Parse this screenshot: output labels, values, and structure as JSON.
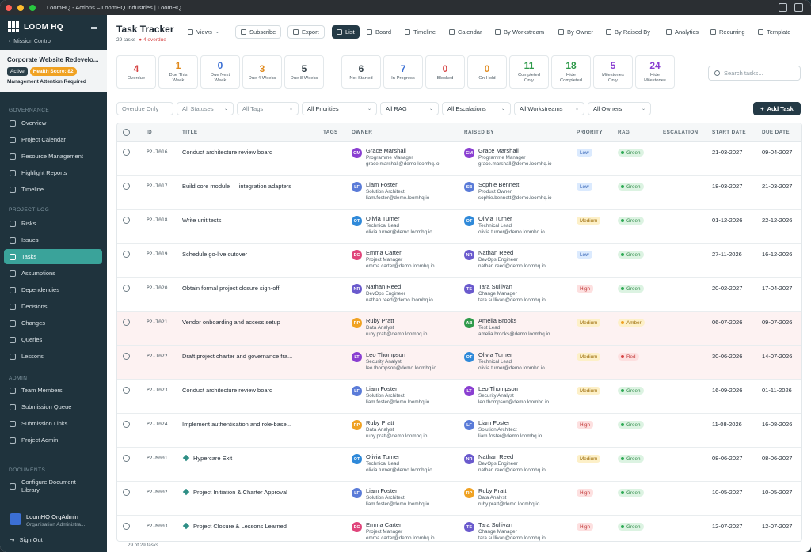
{
  "window": {
    "title": "LoomHQ - Actions – LoomHQ Industries | LoomHQ"
  },
  "sidebar": {
    "brand": "LOOM HQ",
    "back_link": "Mission Control",
    "project": {
      "name": "Corporate Website Redevelo...",
      "status": "Active",
      "health": "Health Score: 82",
      "attention": "Management Attention Required"
    },
    "sections": [
      {
        "label": "GOVERNANCE",
        "items": [
          {
            "label": "Overview",
            "icon": "grid-icon"
          },
          {
            "label": "Project Calendar",
            "icon": "calendar-icon"
          },
          {
            "label": "Resource Management",
            "icon": "users-icon"
          },
          {
            "label": "Highlight Reports",
            "icon": "report-icon"
          },
          {
            "label": "Timeline",
            "icon": "timeline-icon"
          }
        ]
      },
      {
        "label": "PROJECT LOG",
        "items": [
          {
            "label": "Risks",
            "icon": "risk-icon"
          },
          {
            "label": "Issues",
            "icon": "issue-icon"
          },
          {
            "label": "Tasks",
            "icon": "tasks-icon",
            "active": true
          },
          {
            "label": "Assumptions",
            "icon": "bulb-icon"
          },
          {
            "label": "Dependencies",
            "icon": "link-icon"
          },
          {
            "label": "Decisions",
            "icon": "decision-icon"
          },
          {
            "label": "Changes",
            "icon": "changes-icon"
          },
          {
            "label": "Queries",
            "icon": "query-icon"
          },
          {
            "label": "Lessons",
            "icon": "book-icon"
          }
        ]
      },
      {
        "label": "ADMIN",
        "items": [
          {
            "label": "Team Members",
            "icon": "team-icon"
          },
          {
            "label": "Submission Queue",
            "icon": "queue-icon"
          },
          {
            "label": "Submission Links",
            "icon": "link-icon"
          },
          {
            "label": "Project Admin",
            "icon": "gear-icon"
          }
        ]
      },
      {
        "label": "DOCUMENTS",
        "items": [
          {
            "label": "Configure Document Library",
            "icon": "gear-icon"
          }
        ]
      }
    ],
    "user": {
      "name": "LoomHQ OrgAdmin",
      "role": "Organisation Administra..."
    },
    "sign_out": "Sign Out"
  },
  "header": {
    "title": "Task Tracker",
    "count": "29 tasks",
    "overdue": "● 4 overdue",
    "views": "Views",
    "subscribe": "Subscribe",
    "export": "Export",
    "view_tabs": [
      "List",
      "Board",
      "Timeline",
      "Calendar",
      "By Workstream",
      "By Owner",
      "By Raised By",
      "Analytics",
      "Recurring",
      "Template"
    ]
  },
  "stats_group1": [
    {
      "num": "4",
      "label": "Overdue",
      "color": "#d64545"
    },
    {
      "num": "1",
      "label": "Due This Week",
      "color": "#e08a1e"
    },
    {
      "num": "0",
      "label": "Due Next Week",
      "color": "#3b6fd4"
    },
    {
      "num": "3",
      "label": "Due 4 Weeks",
      "color": "#e08a1e"
    },
    {
      "num": "5",
      "label": "Due 8 Weeks",
      "color": "#36434b"
    }
  ],
  "stats_group2": [
    {
      "num": "6",
      "label": "Not Started",
      "color": "#36434b"
    },
    {
      "num": "7",
      "label": "In Progress",
      "color": "#3b6fd4"
    },
    {
      "num": "0",
      "label": "Blocked",
      "color": "#d64545"
    },
    {
      "num": "0",
      "label": "On Hold",
      "color": "#e08a1e"
    },
    {
      "num": "11",
      "label": "Completed Only",
      "color": "#2e9a4a"
    },
    {
      "num": "18",
      "label": "Hide Completed",
      "color": "#2e9a4a"
    },
    {
      "num": "5",
      "label": "Milestones Only",
      "color": "#8a3fd1"
    },
    {
      "num": "24",
      "label": "Hide Milestones",
      "color": "#8a3fd1"
    }
  ],
  "search": {
    "placeholder": "Search tasks..."
  },
  "filters": [
    {
      "label": "Overdue Only",
      "w": 0
    },
    {
      "label": "All Statuses"
    },
    {
      "label": "All Tags"
    },
    {
      "label": "All Priorities"
    },
    {
      "label": "All RAG"
    },
    {
      "label": "All Escalations"
    },
    {
      "label": "All Workstreams"
    },
    {
      "label": "All Owners"
    }
  ],
  "add_task": "Add Task",
  "columns": [
    "ID",
    "TITLE",
    "TAGS",
    "OWNER",
    "RAISED BY",
    "PRIORITY",
    "RAG",
    "ESCALATION",
    "START DATE",
    "DUE DATE"
  ],
  "rows": [
    {
      "id": "P2-T016",
      "title": "Conduct architecture review board",
      "tags": "—",
      "owner": {
        "i": "GM",
        "name": "Grace Marshall",
        "role": "Programme Manager",
        "email": "grace.marshall@demo.loomhq.io"
      },
      "raised": {
        "i": "GM",
        "name": "Grace Marshall",
        "role": "Programme Manager",
        "email": "grace.marshall@demo.loomhq.io"
      },
      "priority": "Low",
      "rag": "Green",
      "esc": "—",
      "start": "21-03-2027",
      "due": "09-04-2027"
    },
    {
      "id": "P2-T017",
      "title": "Build core module — integration adapters",
      "tags": "—",
      "owner": {
        "i": "LF",
        "name": "Liam Foster",
        "role": "Solution Architect",
        "email": "liam.foster@demo.loomhq.io"
      },
      "raised": {
        "i": "SB",
        "name": "Sophie Bennett",
        "role": "Product Owner",
        "email": "sophie.bennett@demo.loomhq.io"
      },
      "priority": "Low",
      "rag": "Green",
      "esc": "—",
      "start": "18-03-2027",
      "due": "21-03-2027"
    },
    {
      "id": "P2-T018",
      "title": "Write unit tests",
      "tags": "—",
      "owner": {
        "i": "OT",
        "name": "Olivia Turner",
        "role": "Technical Lead",
        "email": "olivia.turner@demo.loomhq.io"
      },
      "raised": {
        "i": "OT",
        "name": "Olivia Turner",
        "role": "Technical Lead",
        "email": "olivia.turner@demo.loomhq.io"
      },
      "priority": "Medium",
      "rag": "Green",
      "esc": "—",
      "start": "01-12-2026",
      "due": "22-12-2026"
    },
    {
      "id": "P2-T019",
      "title": "Schedule go-live cutover",
      "tags": "—",
      "owner": {
        "i": "EC",
        "name": "Emma Carter",
        "role": "Project Manager",
        "email": "emma.carter@demo.loomhq.io"
      },
      "raised": {
        "i": "NR",
        "name": "Nathan Reed",
        "role": "DevOps Engineer",
        "email": "nathan.reed@demo.loomhq.io"
      },
      "priority": "Low",
      "rag": "Green",
      "esc": "—",
      "start": "27-11-2026",
      "due": "16-12-2026"
    },
    {
      "id": "P2-T020",
      "title": "Obtain formal project closure sign-off",
      "tags": "—",
      "owner": {
        "i": "NR",
        "name": "Nathan Reed",
        "role": "DevOps Engineer",
        "email": "nathan.reed@demo.loomhq.io"
      },
      "raised": {
        "i": "TS",
        "name": "Tara Sullivan",
        "role": "Change Manager",
        "email": "tara.sullivan@demo.loomhq.io"
      },
      "priority": "High",
      "rag": "Green",
      "esc": "—",
      "start": "20-02-2027",
      "due": "17-04-2027"
    },
    {
      "id": "P2-T021",
      "title": "Vendor onboarding and access setup",
      "tags": "—",
      "owner": {
        "i": "RP",
        "name": "Ruby Pratt",
        "role": "Data Analyst",
        "email": "ruby.pratt@demo.loomhq.io"
      },
      "raised": {
        "i": "AB",
        "name": "Amelia Brooks",
        "role": "Test Lead",
        "email": "amelia.brooks@demo.loomhq.io"
      },
      "priority": "Medium",
      "rag": "Amber",
      "esc": "—",
      "start": "06-07-2026",
      "due": "09-07-2026",
      "hl": true
    },
    {
      "id": "P2-T022",
      "title": "Draft project charter and governance fra...",
      "tags": "—",
      "owner": {
        "i": "LT",
        "name": "Leo Thompson",
        "role": "Security Analyst",
        "email": "leo.thompson@demo.loomhq.io"
      },
      "raised": {
        "i": "OT",
        "name": "Olivia Turner",
        "role": "Technical Lead",
        "email": "olivia.turner@demo.loomhq.io"
      },
      "priority": "Medium",
      "rag": "Red",
      "esc": "—",
      "start": "30-06-2026",
      "due": "14-07-2026",
      "hl": true
    },
    {
      "id": "P2-T023",
      "title": "Conduct architecture review board",
      "tags": "—",
      "owner": {
        "i": "LF",
        "name": "Liam Foster",
        "role": "Solution Architect",
        "email": "liam.foster@demo.loomhq.io"
      },
      "raised": {
        "i": "LT",
        "name": "Leo Thompson",
        "role": "Security Analyst",
        "email": "leo.thompson@demo.loomhq.io"
      },
      "priority": "Medium",
      "rag": "Green",
      "esc": "—",
      "start": "16-09-2026",
      "due": "01-11-2026"
    },
    {
      "id": "P2-T024",
      "title": "Implement authentication and role-base...",
      "tags": "—",
      "owner": {
        "i": "RP",
        "name": "Ruby Pratt",
        "role": "Data Analyst",
        "email": "ruby.pratt@demo.loomhq.io"
      },
      "raised": {
        "i": "LF",
        "name": "Liam Foster",
        "role": "Solution Architect",
        "email": "liam.foster@demo.loomhq.io"
      },
      "priority": "High",
      "rag": "Green",
      "esc": "—",
      "start": "11-08-2026",
      "due": "16-08-2026"
    },
    {
      "id": "P2-M001",
      "title": "Hypercare Exit",
      "milestone": true,
      "tags": "—",
      "owner": {
        "i": "OT",
        "name": "Olivia Turner",
        "role": "Technical Lead",
        "email": "olivia.turner@demo.loomhq.io"
      },
      "raised": {
        "i": "NR",
        "name": "Nathan Reed",
        "role": "DevOps Engineer",
        "email": "nathan.reed@demo.loomhq.io"
      },
      "priority": "Medium",
      "rag": "Green",
      "esc": "—",
      "start": "08-06-2027",
      "due": "08-06-2027"
    },
    {
      "id": "P2-M002",
      "title": "Project Initiation & Charter Approval",
      "milestone": true,
      "tags": "—",
      "owner": {
        "i": "LF",
        "name": "Liam Foster",
        "role": "Solution Architect",
        "email": "liam.foster@demo.loomhq.io"
      },
      "raised": {
        "i": "RP",
        "name": "Ruby Pratt",
        "role": "Data Analyst",
        "email": "ruby.pratt@demo.loomhq.io"
      },
      "priority": "High",
      "rag": "Green",
      "esc": "—",
      "start": "10-05-2027",
      "due": "10-05-2027"
    },
    {
      "id": "P2-M003",
      "title": "Project Closure & Lessons Learned",
      "milestone": true,
      "tags": "—",
      "owner": {
        "i": "EC",
        "name": "Emma Carter",
        "role": "Project Manager",
        "email": "emma.carter@demo.loomhq.io"
      },
      "raised": {
        "i": "TS",
        "name": "Tara Sullivan",
        "role": "Change Manager",
        "email": "tara.sullivan@demo.loomhq.io"
      },
      "priority": "High",
      "rag": "Green",
      "esc": "—",
      "start": "12-07-2027",
      "due": "12-07-2027"
    }
  ],
  "avatar_colors": {
    "GM": "#8a3fd1",
    "LF": "#5a7bd8",
    "SB": "#5a7bd8",
    "OT": "#2f89d9",
    "EC": "#e0457b",
    "NR": "#6a5acd",
    "TS": "#6a5acd",
    "RP": "#f0a223",
    "AB": "#2e9a4a",
    "LT": "#8a3fd1"
  },
  "priority_colors": {
    "Low": [
      "#dbeafe",
      "#2f5fb3"
    ],
    "Medium": [
      "#fdf0c8",
      "#9a6a05"
    ],
    "High": [
      "#fde0e0",
      "#c23b3b"
    ]
  },
  "rag_colors": {
    "Green": [
      "#dcf3e2",
      "#2e8a47",
      "#2eaa55"
    ],
    "Amber": [
      "#fdf0c8",
      "#9a6a05",
      "#f0a223"
    ],
    "Red": [
      "#fde0e0",
      "#c23b3b",
      "#d64545"
    ]
  },
  "footer": "29 of 29 tasks"
}
